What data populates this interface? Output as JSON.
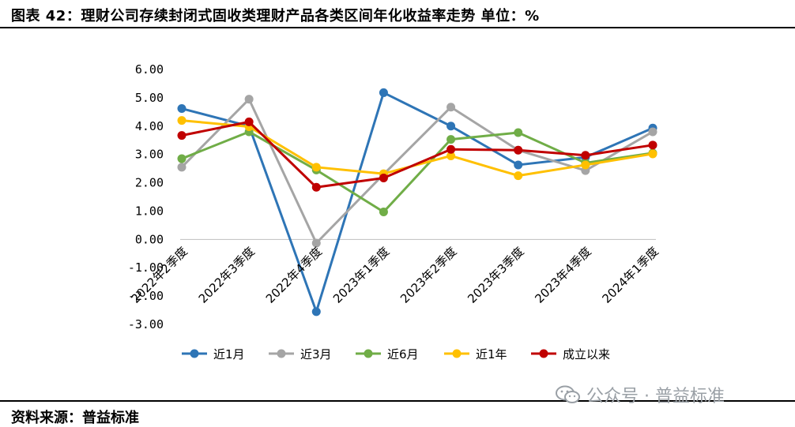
{
  "header": {
    "title": "图表 42：理财公司存续封闭式固收类理财产品各类区间年化收益率走势    单位：%"
  },
  "footer": {
    "source": "资料来源：普益标准",
    "watermark": "公众号 · 普益标准",
    "watermark_icon": "wechat-icon"
  },
  "chart_data": {
    "type": "line",
    "categories": [
      "2022年2季度",
      "2022年3季度",
      "2022年4季度",
      "2023年1季度",
      "2023年2季度",
      "2023年3季度",
      "2023年4季度",
      "2024年1季度"
    ],
    "ylim": [
      -3,
      6
    ],
    "yticks": [
      6,
      5,
      4,
      3,
      2,
      1,
      0,
      -1,
      -2,
      -3
    ],
    "ytick_labels": [
      "6.00",
      "5.00",
      "4.00",
      "3.00",
      "2.00",
      "1.00",
      "0.00",
      "-1.00",
      "-2.00",
      "-3.00"
    ],
    "grid": false,
    "legend_position": "bottom",
    "series": [
      {
        "name": "近1月",
        "color": "#2e75b6",
        "values": [
          4.62,
          4.0,
          -2.55,
          5.18,
          4.0,
          2.63,
          2.9,
          3.93
        ]
      },
      {
        "name": "近3月",
        "color": "#a5a5a5",
        "values": [
          2.55,
          4.95,
          -0.13,
          2.3,
          4.67,
          3.15,
          2.43,
          3.8
        ]
      },
      {
        "name": "近6月",
        "color": "#70ad47",
        "values": [
          2.85,
          3.8,
          2.45,
          0.97,
          3.53,
          3.77,
          2.7,
          3.05
        ]
      },
      {
        "name": "近1年",
        "color": "#ffc000",
        "values": [
          4.2,
          3.98,
          2.55,
          2.32,
          2.95,
          2.25,
          2.63,
          3.02
        ]
      },
      {
        "name": "成立以来",
        "color": "#c00000",
        "values": [
          3.67,
          4.15,
          1.84,
          2.17,
          3.18,
          3.15,
          2.97,
          3.33
        ]
      }
    ]
  }
}
